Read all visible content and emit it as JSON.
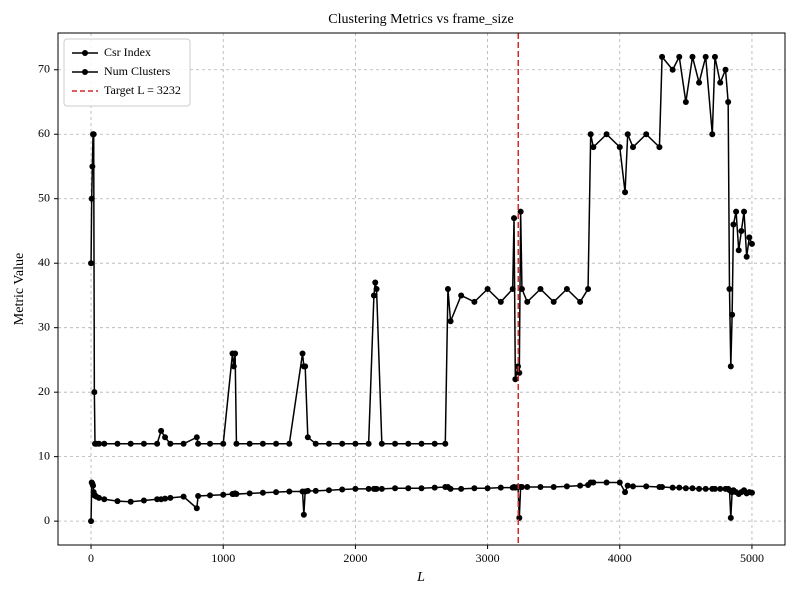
{
  "chart_data": {
    "type": "line",
    "title": "Clustering Metrics vs frame_size",
    "x_label": "L",
    "y_label": "Metric Value",
    "x": [
      0,
      5,
      10,
      15,
      20,
      25,
      30,
      40,
      60,
      100,
      200,
      300,
      400,
      500,
      530,
      560,
      600,
      700,
      800,
      810,
      900,
      1000,
      1070,
      1080,
      1090,
      1100,
      1200,
      1300,
      1400,
      1500,
      1600,
      1610,
      1620,
      1640,
      1700,
      1800,
      1900,
      2000,
      2100,
      2140,
      2150,
      2160,
      2200,
      2300,
      2400,
      2500,
      2600,
      2680,
      2700,
      2720,
      2800,
      2900,
      3000,
      3100,
      3190,
      3200,
      3210,
      3230,
      3240,
      3250,
      3260,
      3300,
      3400,
      3500,
      3600,
      3700,
      3760,
      3780,
      3800,
      3900,
      4000,
      4040,
      4060,
      4100,
      4200,
      4300,
      4320,
      4400,
      4450,
      4500,
      4550,
      4600,
      4650,
      4700,
      4720,
      4760,
      4800,
      4820,
      4830,
      4840,
      4850,
      4860,
      4880,
      4900,
      4920,
      4940,
      4960,
      4980,
      5000
    ],
    "series": [
      {
        "name": "Csr Index",
        "color": "#000000",
        "values": [
          0,
          6,
          5.8,
          5.5,
          4.5,
          4,
          4,
          3.8,
          3.6,
          3.4,
          3.1,
          3,
          3.2,
          3.4,
          3.4,
          3.5,
          3.6,
          3.8,
          2,
          3.9,
          4,
          4.1,
          4.2,
          4.2,
          4.3,
          4.2,
          4.3,
          4.4,
          4.5,
          4.6,
          4.6,
          1,
          4.6,
          4.7,
          4.7,
          4.8,
          4.9,
          5,
          5,
          5,
          5,
          5,
          5,
          5.1,
          5.1,
          5.1,
          5.2,
          5.3,
          5.3,
          5,
          5,
          5.1,
          5.1,
          5.2,
          5.2,
          5.3,
          5.2,
          5.3,
          0.5,
          5.3,
          5.3,
          5.3,
          5.3,
          5.3,
          5.4,
          5.5,
          5.6,
          6,
          6,
          6,
          6,
          4.5,
          5.5,
          5.4,
          5.4,
          5.3,
          5.3,
          5.2,
          5.2,
          5.1,
          5.1,
          5,
          5,
          5,
          5,
          5,
          5,
          5,
          4.8,
          0.5,
          4.5,
          4.8,
          4.5,
          4.2,
          4.5,
          4.8,
          4.3,
          4.5,
          4.4
        ]
      },
      {
        "name": "Num Clusters",
        "color": "#000000",
        "values": [
          40,
          50,
          55,
          60,
          60,
          20,
          12,
          12,
          12,
          12,
          12,
          12,
          12,
          12,
          14,
          13,
          12,
          12,
          13,
          12,
          12,
          12,
          26,
          24,
          26,
          12,
          12,
          12,
          12,
          12,
          26,
          24,
          24,
          13,
          12,
          12,
          12,
          12,
          12,
          35,
          37,
          36,
          12,
          12,
          12,
          12,
          12,
          12,
          36,
          31,
          35,
          34,
          36,
          34,
          36,
          47,
          22,
          24,
          23,
          48,
          36,
          34,
          36,
          34,
          36,
          34,
          36,
          60,
          58,
          60,
          58,
          51,
          60,
          58,
          60,
          58,
          72,
          70,
          72,
          65,
          72,
          68,
          72,
          60,
          72,
          68,
          70,
          65,
          36,
          24,
          32,
          46,
          48,
          42,
          45,
          48,
          41,
          44,
          43
        ]
      }
    ],
    "vline": {
      "x": 3232,
      "label": "Target L = 3232",
      "color": "#d62728"
    },
    "xlim": [
      -250,
      5250
    ],
    "ylim": [
      -3.7,
      75.7
    ],
    "xticks": [
      0,
      1000,
      2000,
      3000,
      4000,
      5000
    ],
    "yticks": [
      0,
      10,
      20,
      30,
      40,
      50,
      60,
      70
    ],
    "grid": true,
    "legend": "upper left"
  }
}
